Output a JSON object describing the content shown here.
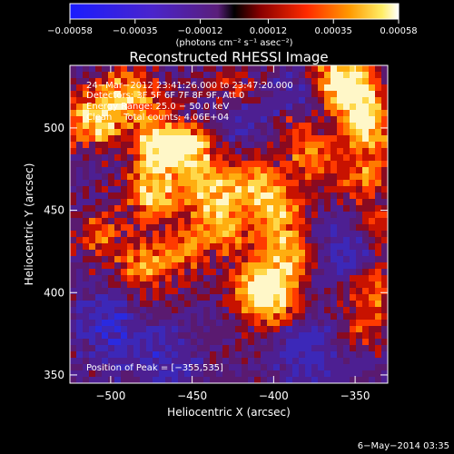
{
  "chart_data": {
    "type": "heatmap",
    "title": "Reconstructed RHESSI Image",
    "xlabel": "Heliocentric X (arcsec)",
    "ylabel": "Heliocentric Y (arcsec)",
    "x_range": [
      -525,
      -330
    ],
    "y_range": [
      345,
      538
    ],
    "x_ticks": [
      -500,
      -450,
      -400,
      -350
    ],
    "y_ticks": [
      350,
      400,
      450,
      500
    ],
    "x_tick_labels": [
      "−500",
      "−450",
      "−400",
      "−350"
    ],
    "y_tick_labels": [
      "350",
      "400",
      "450",
      "500"
    ],
    "colorbar": {
      "min": -0.00058,
      "max": 0.00058,
      "ticks": [
        -0.00058,
        -0.00035,
        -0.00012,
        0.00012,
        0.00035,
        0.00058
      ],
      "tick_labels": [
        "−0.00058",
        "−0.00035",
        "−0.00012",
        "0.00012",
        "0.00035",
        "0.00058"
      ],
      "unit_label": "(photons cm⁻² s⁻¹ asec⁻²)"
    },
    "annotations": [
      "24−Mar−2012 23:41:26.000 to 23:47:20.000",
      "Detectors: 3F 5F 6F 7F 8F 9F, Att 0",
      "Energy Range: 25.0 − 50.0 keV",
      "Clean    Total counts: 4.06E+04"
    ],
    "peak_label": "Position of Peak = [−355,535]",
    "peak": [
      -355,
      535
    ],
    "bright_regions": [
      {
        "x": -510,
        "y": 505,
        "level": 0.85
      },
      {
        "x": -490,
        "y": 520,
        "level": 0.7
      },
      {
        "x": -470,
        "y": 490,
        "level": 0.9
      },
      {
        "x": -450,
        "y": 485,
        "level": 0.75
      },
      {
        "x": -475,
        "y": 460,
        "level": 0.7
      },
      {
        "x": -440,
        "y": 460,
        "level": 0.6
      },
      {
        "x": -430,
        "y": 440,
        "level": 0.55
      },
      {
        "x": -455,
        "y": 425,
        "level": 0.45
      },
      {
        "x": -480,
        "y": 415,
        "level": 0.5
      },
      {
        "x": -505,
        "y": 435,
        "level": 0.4
      },
      {
        "x": -415,
        "y": 470,
        "level": 0.5
      },
      {
        "x": -400,
        "y": 455,
        "level": 0.55
      },
      {
        "x": -395,
        "y": 435,
        "level": 0.4
      },
      {
        "x": -410,
        "y": 405,
        "level": 0.7
      },
      {
        "x": -400,
        "y": 395,
        "level": 0.65
      },
      {
        "x": -390,
        "y": 420,
        "level": 0.45
      },
      {
        "x": -360,
        "y": 530,
        "level": 1.0
      },
      {
        "x": -348,
        "y": 515,
        "level": 0.9
      },
      {
        "x": -340,
        "y": 495,
        "level": 0.55
      },
      {
        "x": -345,
        "y": 470,
        "level": 0.45
      },
      {
        "x": -335,
        "y": 440,
        "level": 0.4
      },
      {
        "x": -340,
        "y": 405,
        "level": 0.45
      },
      {
        "x": -345,
        "y": 380,
        "level": 0.35
      },
      {
        "x": -375,
        "y": 480,
        "level": 0.4
      },
      {
        "x": -385,
        "y": 500,
        "level": 0.45
      },
      {
        "x": -425,
        "y": 520,
        "level": 0.4
      }
    ],
    "dark_regions": [
      {
        "x": -420,
        "y": 505
      },
      {
        "x": -380,
        "y": 515
      },
      {
        "x": -470,
        "y": 360
      },
      {
        "x": -500,
        "y": 380
      },
      {
        "x": -380,
        "y": 365
      },
      {
        "x": -355,
        "y": 425
      }
    ]
  },
  "footer": {
    "date": "6−May−2014 03:35"
  }
}
